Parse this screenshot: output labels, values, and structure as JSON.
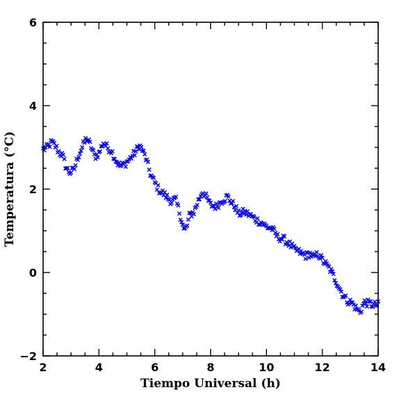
{
  "chart_data": {
    "type": "scatter",
    "title": "",
    "xlabel": "Tiempo Universal (h)",
    "ylabel": "Temperatura (°C)",
    "xlim": [
      2,
      14
    ],
    "ylim": [
      -2,
      6
    ],
    "x_major_ticks": [
      2,
      4,
      6,
      8,
      10,
      12,
      14
    ],
    "y_major_ticks": [
      -2,
      0,
      2,
      4,
      6
    ],
    "x_tick_labels": [
      "2",
      "4",
      "6",
      "8",
      "10",
      "12",
      "14"
    ],
    "y_tick_labels": [
      "−2",
      "0",
      "2",
      "4",
      "6"
    ],
    "x_minor_step": 0.5,
    "y_minor_step": 0.5,
    "grid": false,
    "marker": "x",
    "color": "#0000ff",
    "series": [
      {
        "anchors": [
          [
            2.0,
            2.95
          ],
          [
            2.15,
            3.0
          ],
          [
            2.3,
            3.12
          ],
          [
            2.42,
            3.05
          ],
          [
            2.55,
            2.9
          ],
          [
            2.7,
            2.8
          ],
          [
            2.82,
            2.52
          ],
          [
            2.95,
            2.4
          ],
          [
            3.1,
            2.45
          ],
          [
            3.25,
            2.78
          ],
          [
            3.4,
            3.0
          ],
          [
            3.55,
            3.22
          ],
          [
            3.7,
            3.05
          ],
          [
            3.85,
            2.78
          ],
          [
            4.0,
            2.85
          ],
          [
            4.15,
            3.12
          ],
          [
            4.3,
            3.0
          ],
          [
            4.45,
            2.92
          ],
          [
            4.6,
            2.7
          ],
          [
            4.75,
            2.55
          ],
          [
            4.9,
            2.58
          ],
          [
            5.1,
            2.72
          ],
          [
            5.3,
            2.88
          ],
          [
            5.45,
            3.05
          ],
          [
            5.55,
            2.95
          ],
          [
            5.7,
            2.7
          ],
          [
            5.85,
            2.35
          ],
          [
            6.0,
            2.15
          ],
          [
            6.15,
            1.98
          ],
          [
            6.3,
            1.9
          ],
          [
            6.45,
            1.8
          ],
          [
            6.6,
            1.7
          ],
          [
            6.75,
            1.75
          ],
          [
            6.85,
            1.52
          ],
          [
            6.95,
            1.28
          ],
          [
            7.05,
            1.0
          ],
          [
            7.15,
            1.1
          ],
          [
            7.25,
            1.38
          ],
          [
            7.4,
            1.45
          ],
          [
            7.55,
            1.7
          ],
          [
            7.7,
            1.95
          ],
          [
            7.85,
            1.8
          ],
          [
            8.0,
            1.62
          ],
          [
            8.2,
            1.58
          ],
          [
            8.4,
            1.72
          ],
          [
            8.6,
            1.82
          ],
          [
            8.75,
            1.68
          ],
          [
            8.9,
            1.55
          ],
          [
            9.0,
            1.4
          ],
          [
            9.2,
            1.45
          ],
          [
            9.4,
            1.38
          ],
          [
            9.6,
            1.28
          ],
          [
            9.8,
            1.2
          ],
          [
            10.0,
            1.1
          ],
          [
            10.2,
            1.05
          ],
          [
            10.4,
            0.85
          ],
          [
            10.6,
            0.8
          ],
          [
            10.8,
            0.7
          ],
          [
            11.0,
            0.55
          ],
          [
            11.2,
            0.48
          ],
          [
            11.4,
            0.4
          ],
          [
            11.55,
            0.45
          ],
          [
            11.7,
            0.35
          ],
          [
            11.85,
            0.45
          ],
          [
            12.0,
            0.3
          ],
          [
            12.15,
            0.18
          ],
          [
            12.3,
            0.05
          ],
          [
            12.45,
            -0.15
          ],
          [
            12.6,
            -0.35
          ],
          [
            12.75,
            -0.55
          ],
          [
            12.9,
            -0.68
          ],
          [
            13.05,
            -0.72
          ],
          [
            13.2,
            -0.85
          ],
          [
            13.35,
            -0.95
          ],
          [
            13.5,
            -0.72
          ],
          [
            13.7,
            -0.75
          ],
          [
            13.85,
            -0.78
          ],
          [
            14.0,
            -0.78
          ]
        ]
      }
    ]
  }
}
